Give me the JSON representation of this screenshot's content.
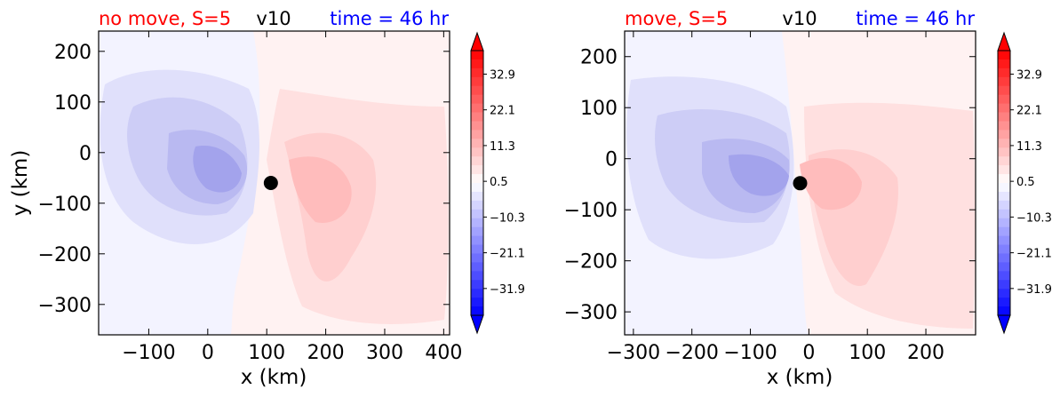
{
  "colors": {
    "red": "#ff0000",
    "blue": "#0000ff",
    "black": "#000000"
  },
  "chart_data": [
    {
      "type": "heatmap",
      "title_left": "no move, S=5",
      "title_center": "v10",
      "title_right": "time = 46 hr",
      "xlabel": "x (km)",
      "ylabel": "y (km)",
      "xlim": [
        -185,
        410
      ],
      "ylim": [
        -360,
        240
      ],
      "xticks": [
        -100,
        0,
        100,
        200,
        300,
        400
      ],
      "xtick_labels": [
        "−100",
        "0",
        "100",
        "200",
        "300",
        "400"
      ],
      "yticks": [
        200,
        100,
        0,
        -100,
        -200,
        -300
      ],
      "ytick_labels": [
        "200",
        "100",
        "0",
        "−100",
        "−200",
        "−300"
      ],
      "marker": {
        "x": 107,
        "y": -60
      },
      "colorbar": {
        "ticks": [
          "32.9",
          "22.1",
          "11.3",
          "0.5",
          "−10.3",
          "−21.1",
          "−31.9"
        ],
        "range": [
          -40.0,
          40.0
        ],
        "colormap": "bwr"
      }
    },
    {
      "type": "heatmap",
      "title_left": "move, S=5",
      "title_center": "v10",
      "title_right": "time = 46 hr",
      "xlabel": "x (km)",
      "ylabel": "",
      "xlim": [
        -315,
        285
      ],
      "ylim": [
        -345,
        250
      ],
      "xticks": [
        -300,
        -200,
        -100,
        0,
        100,
        200
      ],
      "xtick_labels": [
        "−300",
        "−200",
        "−100",
        "0",
        "100",
        "200"
      ],
      "yticks": [
        200,
        100,
        0,
        -100,
        -200,
        -300
      ],
      "ytick_labels": [
        "200",
        "100",
        "0",
        "−100",
        "−200",
        "−300"
      ],
      "marker": {
        "x": -15,
        "y": -48
      },
      "colorbar": {
        "ticks": [
          "32.9",
          "22.1",
          "11.3",
          "0.5",
          "−10.3",
          "−21.1",
          "−31.9"
        ],
        "range": [
          -40.0,
          40.0
        ],
        "colormap": "bwr"
      }
    }
  ]
}
